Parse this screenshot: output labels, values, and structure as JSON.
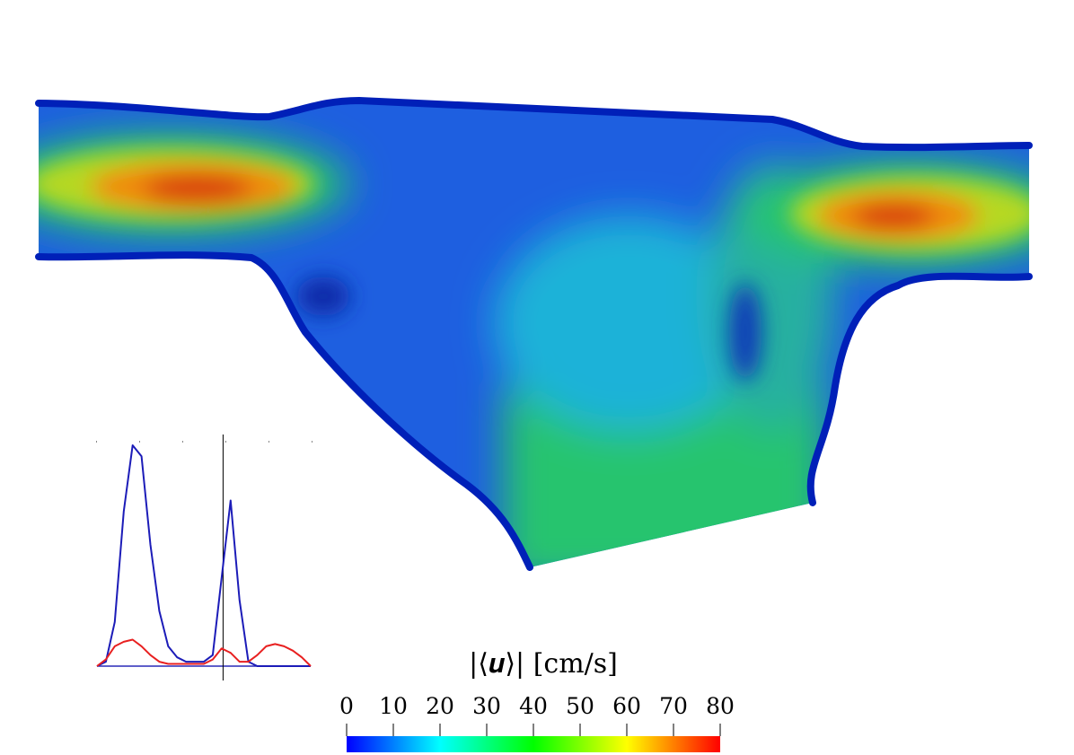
{
  "colorbar": {
    "title": "|⟨𝒖⟩| [cm/s]",
    "ticks": [
      "0",
      "10",
      "20",
      "30",
      "40",
      "50",
      "60",
      "70",
      "80"
    ],
    "min": 0,
    "max": 80,
    "colormap": [
      "#0000ff",
      "#00ffff",
      "#00ff00",
      "#ffff00",
      "#ff0000"
    ]
  },
  "field_colors": {
    "wall_low": "#0020b8",
    "low": "#1e5fe0",
    "mid_low": "#1fb2d8",
    "mid": "#27c46e",
    "mid_high": "#b6d820",
    "high": "#f08a10",
    "peak": "#d8400c"
  },
  "waveform": {
    "series": [
      {
        "color": "#1c1cb8",
        "values": [
          0,
          0.02,
          0.2,
          0.7,
          1.0,
          0.95,
          0.55,
          0.25,
          0.09,
          0.04,
          0.02,
          0.02,
          0.02,
          0.05,
          0.4,
          0.75,
          0.3,
          0.02,
          0,
          0,
          0,
          0,
          0,
          0,
          0
        ]
      },
      {
        "color": "#e82020",
        "values": [
          0,
          0.03,
          0.09,
          0.11,
          0.12,
          0.09,
          0.05,
          0.02,
          0.01,
          0.01,
          0.01,
          0.01,
          0.01,
          0.03,
          0.08,
          0.06,
          0.02,
          0.02,
          0.05,
          0.09,
          0.1,
          0.09,
          0.07,
          0.04,
          0
        ]
      }
    ],
    "marker_fraction": 0.59
  }
}
